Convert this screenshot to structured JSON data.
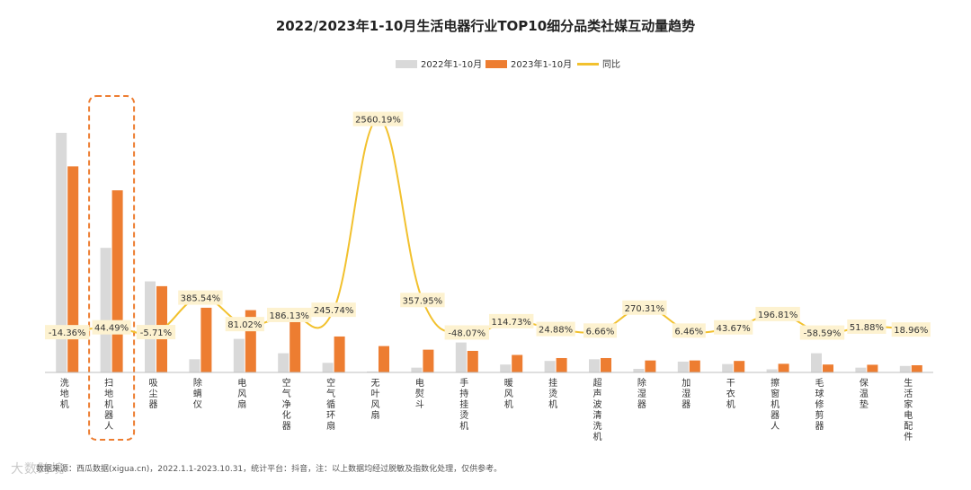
{
  "chart_data": {
    "type": "bar",
    "title": "2022/2023年1-10月生活电器行业TOP10细分品类社媒互动量趋势",
    "legend": [
      "2022年1-10月",
      "2023年1-10月",
      "同比"
    ],
    "legend_position": "top",
    "categories": [
      "洗地机",
      "扫地机器人",
      "吸尘器",
      "除螨仪",
      "电风扇",
      "空气净化器",
      "空气循环扇",
      "无叶风扇",
      "电熨斗",
      "手持挂烫机",
      "暖风机",
      "挂烫机",
      "超声波清洗机",
      "除湿器",
      "加湿器",
      "干衣机",
      "擦窗机器人",
      "毛球修剪器",
      "保温垫",
      "生活家电配件"
    ],
    "series": [
      {
        "name": "2022年1-10月",
        "type": "bar",
        "color": "#d9d9d9",
        "values": [
          100,
          52,
          38,
          5.5,
          14,
          8,
          4,
          0.4,
          2,
          12.5,
          3.3,
          4.8,
          5.5,
          1.5,
          4.5,
          3.5,
          1.3,
          8,
          2,
          2.7
        ]
      },
      {
        "name": "2023年1-10月",
        "type": "bar",
        "color": "#ed7d31",
        "values": [
          86,
          76,
          36,
          27,
          26,
          21,
          15,
          11,
          9.5,
          9,
          7.3,
          6,
          6,
          5,
          5,
          4.8,
          3.6,
          3.3,
          3.2,
          3
        ]
      },
      {
        "name": "同比",
        "type": "line",
        "color": "#f2c12e",
        "values": [
          -14.36,
          44.49,
          -5.71,
          385.54,
          81.02,
          186.13,
          245.74,
          2560.19,
          357.95,
          -48.07,
          114.73,
          24.88,
          6.66,
          270.31,
          6.46,
          43.67,
          196.81,
          -58.59,
          51.88,
          18.96
        ],
        "labels": [
          "-14.36%",
          "44.49%",
          "-5.71%",
          "385.54%",
          "81.02%",
          "186.13%",
          "245.74%",
          "2560.19%",
          "357.95%",
          "-48.07%",
          "114.73%",
          "24.88%",
          "6.66%",
          "270.31%",
          "6.46%",
          "43.67%",
          "196.81%",
          "-58.59%",
          "51.88%",
          "18.96%"
        ]
      }
    ],
    "highlighted_category": "扫地机器人",
    "grid": false,
    "highlight_color": "#ed7d31",
    "label_bg_color": "#fdf2d0"
  },
  "footer": {
    "source_note": "数据来源：西瓜数据(xigua.cn)，2022.1.1-2023.10.31，统计平台：抖音，注：以上数据均经过脱敏及指数化处理，仅供参考。",
    "watermark": "大数跨境"
  }
}
